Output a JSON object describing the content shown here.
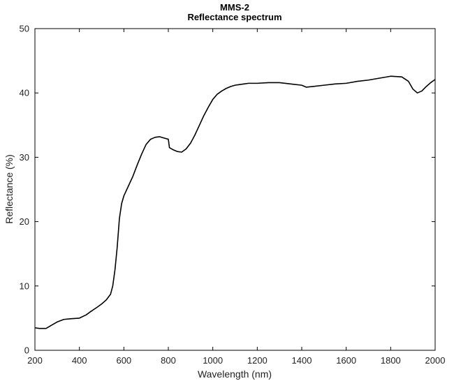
{
  "chart_data": {
    "type": "line",
    "title": "MMS-2",
    "subtitle": "Reflectance spectrum",
    "xlabel": "Wavelength (nm)",
    "ylabel": "Reflectance (%)",
    "xlim": [
      200,
      2000
    ],
    "ylim": [
      0,
      50
    ],
    "xticks": [
      200,
      400,
      600,
      800,
      1000,
      1200,
      1400,
      1600,
      1800,
      2000
    ],
    "yticks": [
      0,
      10,
      20,
      30,
      40,
      50
    ],
    "grid": false,
    "legend": "none",
    "series": [
      {
        "color": "#000000",
        "x": [
          200,
          220,
          250,
          280,
          300,
          330,
          360,
          400,
          430,
          450,
          480,
          500,
          520,
          540,
          550,
          560,
          570,
          580,
          590,
          600,
          620,
          640,
          660,
          680,
          700,
          720,
          740,
          760,
          780,
          800,
          805,
          820,
          840,
          860,
          880,
          900,
          920,
          940,
          960,
          980,
          1000,
          1020,
          1040,
          1060,
          1080,
          1100,
          1120,
          1140,
          1160,
          1180,
          1200,
          1250,
          1300,
          1350,
          1400,
          1420,
          1450,
          1500,
          1550,
          1600,
          1650,
          1700,
          1750,
          1800,
          1850,
          1880,
          1900,
          1920,
          1940,
          1960,
          1980,
          2000
        ],
        "y": [
          3.5,
          3.4,
          3.4,
          4.0,
          4.4,
          4.8,
          4.9,
          5.0,
          5.5,
          6.0,
          6.7,
          7.2,
          7.8,
          8.7,
          10.0,
          12.5,
          16.0,
          20.5,
          22.8,
          24.0,
          25.5,
          27.0,
          28.8,
          30.5,
          32.0,
          32.8,
          33.1,
          33.2,
          33.0,
          32.8,
          31.5,
          31.2,
          30.9,
          30.8,
          31.3,
          32.2,
          33.5,
          35.0,
          36.5,
          37.8,
          39.0,
          39.8,
          40.3,
          40.7,
          41.0,
          41.2,
          41.3,
          41.4,
          41.5,
          41.5,
          41.5,
          41.6,
          41.6,
          41.4,
          41.2,
          40.9,
          41.0,
          41.2,
          41.4,
          41.5,
          41.8,
          42.0,
          42.3,
          42.6,
          42.5,
          41.8,
          40.6,
          40.0,
          40.3,
          41.0,
          41.6,
          42.1
        ]
      }
    ]
  }
}
